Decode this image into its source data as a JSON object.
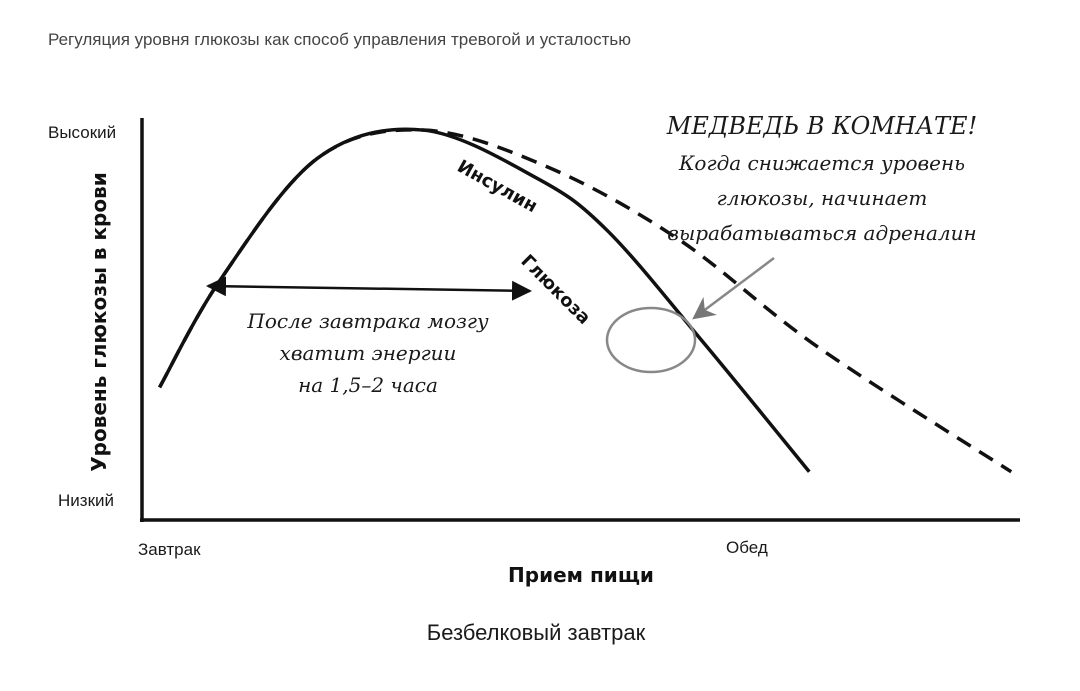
{
  "caption": "Регуляция уровня глюкозы как способ управления тревогой и усталостью",
  "chart_data": {
    "type": "line",
    "xlabel": "Прием пищи",
    "ylabel": "Уровень глюкозы в крови",
    "x_ticks": [
      "Завтрак",
      "Обед"
    ],
    "y_ticks": [
      "Высокий",
      "Низкий"
    ],
    "series": [
      {
        "name": "Глюкоза",
        "style": "solid",
        "color": "#111111",
        "points": [
          [
            0.02,
            0.33
          ],
          [
            0.09,
            0.6
          ],
          [
            0.2,
            0.9
          ],
          [
            0.32,
            0.97
          ],
          [
            0.45,
            0.85
          ],
          [
            0.53,
            0.72
          ],
          [
            0.64,
            0.44
          ],
          [
            0.76,
            0.12
          ]
        ]
      },
      {
        "name": "Инсулин",
        "style": "dashed",
        "color": "#111111",
        "points": [
          [
            0.02,
            0.33
          ],
          [
            0.09,
            0.6
          ],
          [
            0.2,
            0.9
          ],
          [
            0.32,
            0.97
          ],
          [
            0.46,
            0.88
          ],
          [
            0.61,
            0.7
          ],
          [
            0.77,
            0.43
          ],
          [
            0.99,
            0.12
          ]
        ]
      }
    ],
    "subtitle": "Безбелковый завтрак",
    "annotations": {
      "duration": [
        "После завтрака мозгу",
        "хватит энергии",
        "на 1,5–2 часа"
      ],
      "heading": "МЕДВЕДЬ В КОМНАТЕ!",
      "note": [
        "Когда снижается уровень",
        "глюкозы, начинает",
        "вырабатываться адреналин"
      ]
    },
    "annotation_color": "#888888"
  }
}
